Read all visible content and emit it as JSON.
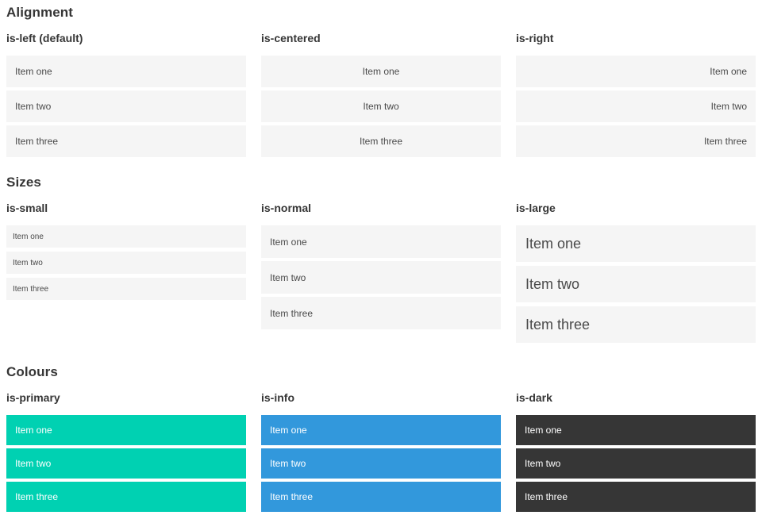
{
  "theme": {
    "colors": {
      "primary": "#00d1b2",
      "info": "#3298dc",
      "dark": "#363636",
      "item-bg": "#f5f5f5",
      "item-text": "#4a4a4a",
      "heading-text": "#363636"
    }
  },
  "sections": [
    {
      "title": "Alignment",
      "columns": [
        {
          "label": "is-left (default)",
          "items": [
            "Item one",
            "Item two",
            "Item three"
          ]
        },
        {
          "label": "is-centered",
          "items": [
            "Item one",
            "Item two",
            "Item three"
          ]
        },
        {
          "label": "is-right",
          "items": [
            "Item one",
            "Item two",
            "Item three"
          ]
        }
      ]
    },
    {
      "title": "Sizes",
      "columns": [
        {
          "label": "is-small",
          "items": [
            "Item one",
            "Item two",
            "Item three"
          ]
        },
        {
          "label": "is-normal",
          "items": [
            "Item one",
            "Item two",
            "Item three"
          ]
        },
        {
          "label": "is-large",
          "items": [
            "Item one",
            "Item two",
            "Item three"
          ]
        }
      ]
    },
    {
      "title": "Colours",
      "columns": [
        {
          "label": "is-primary",
          "items": [
            "Item one",
            "Item two",
            "Item three"
          ]
        },
        {
          "label": "is-info",
          "items": [
            "Item one",
            "Item two",
            "Item three"
          ]
        },
        {
          "label": "is-dark",
          "items": [
            "Item one",
            "Item two",
            "Item three"
          ]
        }
      ]
    }
  ]
}
